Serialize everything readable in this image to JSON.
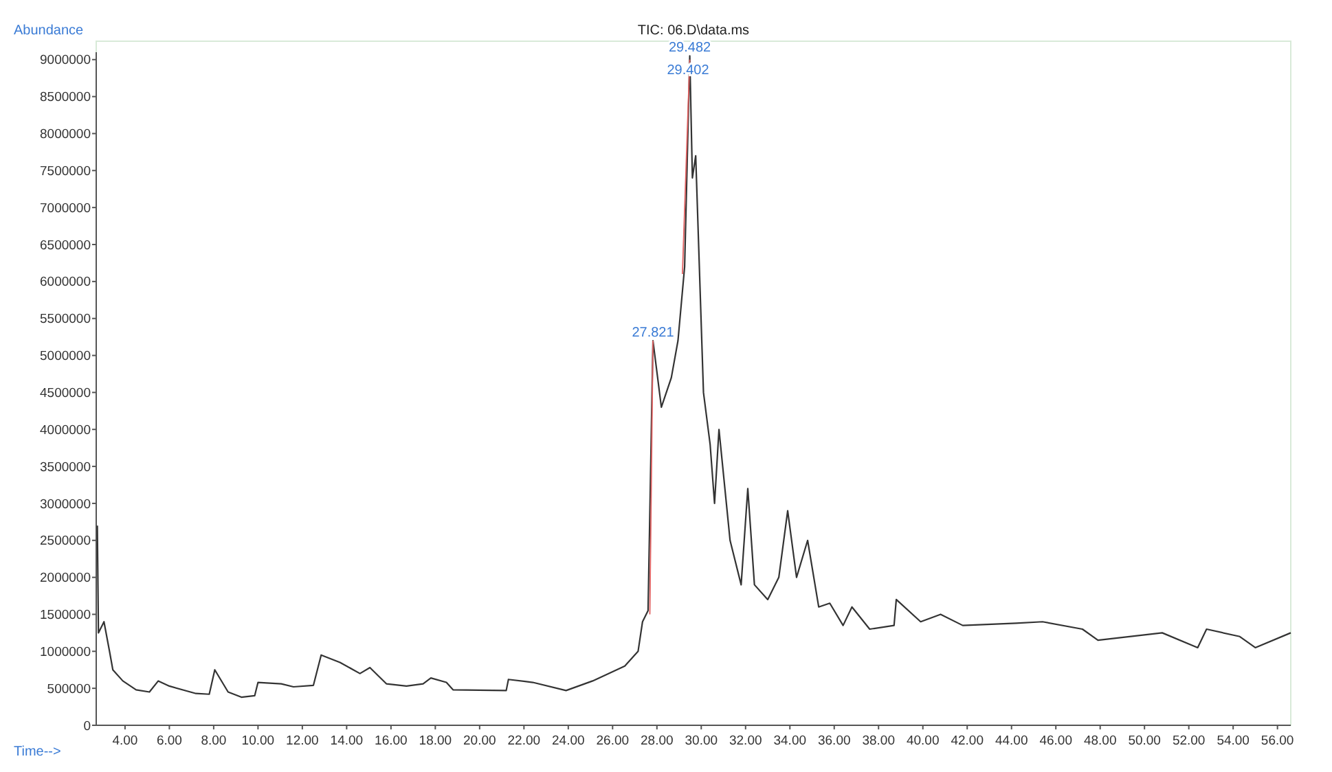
{
  "chart_data": {
    "type": "line",
    "title": "TIC: 06.D\\data.ms",
    "xlabel": "Time-->",
    "ylabel": "Abundance",
    "xlim": [
      2.7,
      56.6
    ],
    "ylim": [
      0,
      9100000
    ],
    "xticks": [
      {
        "value": 4,
        "label": "4.00"
      },
      {
        "value": 6,
        "label": "6.00"
      },
      {
        "value": 8,
        "label": "8.00"
      },
      {
        "value": 10,
        "label": "10.00"
      },
      {
        "value": 12,
        "label": "12.00"
      },
      {
        "value": 14,
        "label": "14.00"
      },
      {
        "value": 16,
        "label": "16.00"
      },
      {
        "value": 18,
        "label": "18.00"
      },
      {
        "value": 20,
        "label": "20.00"
      },
      {
        "value": 22,
        "label": "22.00"
      },
      {
        "value": 24,
        "label": "24.00"
      },
      {
        "value": 26,
        "label": "26.00"
      },
      {
        "value": 28,
        "label": "28.00"
      },
      {
        "value": 30,
        "label": "30.00"
      },
      {
        "value": 32,
        "label": "32.00"
      },
      {
        "value": 34,
        "label": "34.00"
      },
      {
        "value": 36,
        "label": "36.00"
      },
      {
        "value": 38,
        "label": "38.00"
      },
      {
        "value": 40,
        "label": "40.00"
      },
      {
        "value": 42,
        "label": "42.00"
      },
      {
        "value": 44,
        "label": "44.00"
      },
      {
        "value": 46,
        "label": "46.00"
      },
      {
        "value": 48,
        "label": "48.00"
      },
      {
        "value": 50,
        "label": "50.00"
      },
      {
        "value": 52,
        "label": "52.00"
      },
      {
        "value": 54,
        "label": "54.00"
      },
      {
        "value": 56,
        "label": "56.00"
      }
    ],
    "yticks": [
      0,
      500000,
      1000000,
      1500000,
      2000000,
      2500000,
      3000000,
      3500000,
      4000000,
      4500000,
      5000000,
      5500000,
      6000000,
      6500000,
      7000000,
      7500000,
      8000000,
      8500000,
      9000000
    ],
    "grid": false,
    "series": [
      {
        "color": "#333333",
        "x": [
          2.75,
          2.8,
          3.05,
          3.3,
          3.45,
          3.9,
          4.5,
          5.1,
          5.5,
          6.0,
          7.2,
          7.8,
          8.05,
          8.65,
          9.25,
          9.85,
          10.0,
          11.05,
          11.6,
          12.5,
          12.85,
          13.7,
          14.6,
          15.05,
          15.8,
          16.7,
          17.45,
          17.8,
          18.5,
          18.8,
          21.2,
          21.3,
          22.4,
          23.9,
          25.1,
          26.55,
          27.15,
          27.35,
          27.6,
          27.821,
          28.2,
          28.65,
          28.95,
          29.25,
          29.482,
          29.6,
          29.75,
          30.1,
          30.4,
          30.6,
          30.8,
          31.3,
          31.8,
          32.1,
          32.4,
          33.0,
          33.5,
          33.9,
          34.3,
          34.8,
          35.3,
          35.8,
          36.4,
          36.8,
          37.6,
          38.7,
          38.8,
          39.9,
          40.8,
          41.8,
          44.2,
          45.4,
          47.2,
          47.9,
          50.8,
          52.4,
          52.8,
          54.3,
          55.0,
          56.6
        ],
        "values": [
          2700000,
          1250000,
          1400000,
          1000000,
          750000,
          600000,
          480000,
          450000,
          600000,
          530000,
          430000,
          420000,
          750000,
          450000,
          380000,
          400000,
          580000,
          560000,
          520000,
          540000,
          950000,
          850000,
          700000,
          780000,
          560000,
          530000,
          560000,
          640000,
          580000,
          480000,
          470000,
          620000,
          580000,
          470000,
          600000,
          800000,
          1000000,
          1400000,
          1550000,
          5200000,
          4300000,
          4700000,
          5200000,
          6200000,
          9050000,
          7400000,
          7700000,
          4500000,
          3800000,
          3000000,
          4000000,
          2500000,
          1900000,
          3200000,
          1900000,
          1700000,
          2000000,
          2900000,
          2000000,
          2500000,
          1600000,
          1650000,
          1350000,
          1600000,
          1300000,
          1350000,
          1700000,
          1400000,
          1500000,
          1350000,
          1380000,
          1400000,
          1300000,
          1150000,
          1250000,
          1050000,
          1300000,
          1200000,
          1050000,
          1250000
        ]
      },
      {
        "color": "#e06060",
        "x": [
          27.68,
          27.821,
          28.5,
          29.15,
          29.482
        ],
        "values": [
          1500000,
          5200000,
          null,
          6100000,
          9000000
        ]
      }
    ],
    "annotations": [
      {
        "text": "27.821",
        "x": 27.821,
        "y": 5200000
      },
      {
        "text": "29.482",
        "x": 29.482,
        "y": 9050000
      },
      {
        "text": "29.402",
        "x": 29.402,
        "y": 8750000
      }
    ]
  }
}
